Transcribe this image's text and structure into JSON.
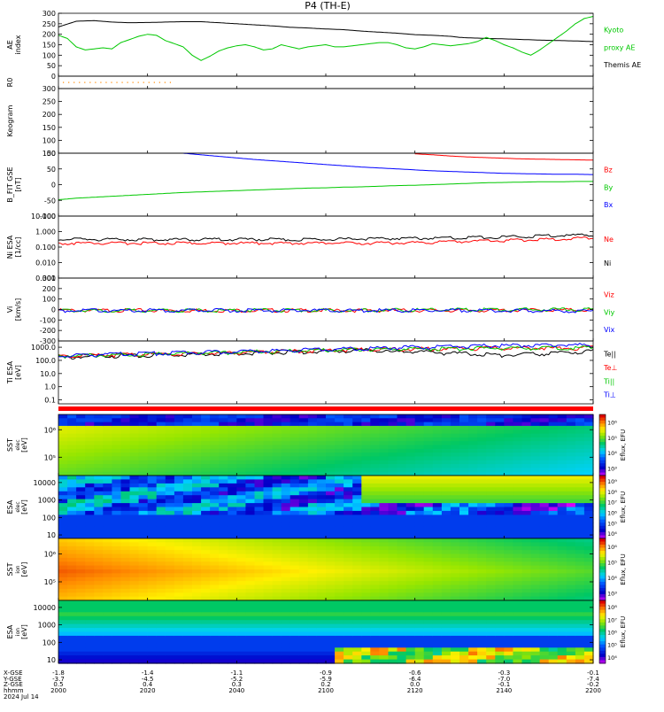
{
  "title": "P4 (TH-E)",
  "colors": {
    "black": "#000000",
    "red": "#ff0000",
    "green": "#00c800",
    "blue": "#0000ff",
    "orange": "#ff8800"
  },
  "chart_data": [
    {
      "type": "line",
      "ylabel": "AE index",
      "ylim": [
        0,
        300
      ],
      "ticks": [
        "0",
        "50",
        "100",
        "150",
        "200",
        "250",
        "300"
      ],
      "legend": [
        "Kyoto",
        "proxy AE",
        "Themis AE"
      ],
      "series": [
        {
          "name": "Themis AE",
          "color": "black",
          "x": [
            0,
            4,
            8,
            12,
            16,
            20,
            24,
            28,
            32,
            36,
            40,
            44,
            48,
            52,
            56,
            60,
            64,
            68,
            72,
            76,
            80,
            84,
            88,
            90,
            92,
            96,
            100,
            104,
            108,
            112,
            116,
            120
          ],
          "values": [
            235,
            262,
            265,
            258,
            255,
            256,
            258,
            260,
            260,
            255,
            250,
            245,
            240,
            233,
            230,
            225,
            222,
            215,
            210,
            205,
            198,
            195,
            190,
            185,
            183,
            180,
            178,
            175,
            172,
            170,
            168,
            165
          ]
        },
        {
          "name": "Kyoto proxy AE",
          "color": "green",
          "x": [
            0,
            2,
            4,
            6,
            8,
            10,
            12,
            14,
            16,
            18,
            20,
            22,
            24,
            26,
            28,
            30,
            32,
            34,
            36,
            38,
            40,
            42,
            44,
            46,
            48,
            50,
            52,
            54,
            56,
            58,
            60,
            62,
            64,
            66,
            68,
            70,
            72,
            74,
            76,
            78,
            80,
            82,
            84,
            86,
            88,
            90,
            92,
            94,
            96,
            98,
            100,
            102,
            104,
            106,
            108,
            110,
            112,
            114,
            116,
            118,
            120
          ],
          "values": [
            195,
            180,
            140,
            125,
            130,
            135,
            130,
            160,
            175,
            190,
            200,
            195,
            170,
            155,
            140,
            100,
            75,
            95,
            120,
            135,
            145,
            150,
            140,
            125,
            130,
            150,
            140,
            130,
            140,
            145,
            150,
            140,
            140,
            145,
            150,
            155,
            160,
            160,
            150,
            135,
            130,
            140,
            155,
            150,
            145,
            150,
            155,
            165,
            185,
            170,
            150,
            135,
            115,
            100,
            125,
            155,
            185,
            215,
            250,
            275,
            285
          ]
        }
      ]
    },
    {
      "type": "line",
      "ylabel": "R0",
      "series": [
        {
          "name": "",
          "color": "orange",
          "x": [
            0,
            20
          ],
          "values": [
            0.5,
            0.5
          ]
        }
      ]
    },
    {
      "type": "line",
      "ylabel": "Keogram",
      "ylim": [
        50,
        300
      ],
      "ticks": [
        "50",
        "100",
        "150",
        "200",
        "250",
        "300"
      ],
      "series": []
    },
    {
      "type": "line",
      "ylabel": "B_FIT GSE [nT]",
      "ylim": [
        -100,
        100
      ],
      "ticks": [
        "-100",
        "-50",
        "0",
        "50",
        "100"
      ],
      "legend": [
        "Bz",
        "By",
        "Bx"
      ],
      "series": [
        {
          "name": "Bz",
          "color": "red",
          "x": [
            80,
            84,
            88,
            92,
            96,
            100,
            104,
            108,
            112,
            116,
            120
          ],
          "values": [
            98,
            95,
            91,
            88,
            86,
            84,
            82,
            81,
            80,
            79,
            78
          ]
        },
        {
          "name": "By",
          "color": "green",
          "x": [
            0,
            4,
            8,
            12,
            16,
            20,
            24,
            28,
            32,
            36,
            40,
            44,
            48,
            52,
            56,
            60,
            64,
            68,
            72,
            76,
            80,
            84,
            88,
            92,
            96,
            100,
            104,
            108,
            112,
            116,
            120
          ],
          "values": [
            -48,
            -43,
            -40,
            -37,
            -34,
            -31,
            -28,
            -25,
            -23,
            -21,
            -19,
            -17,
            -15,
            -13,
            -11,
            -10,
            -8,
            -7,
            -5,
            -3,
            -2,
            0,
            2,
            4,
            6,
            7,
            8,
            9,
            9,
            10,
            10
          ]
        },
        {
          "name": "Bx",
          "color": "blue",
          "x": [
            28,
            32,
            36,
            40,
            44,
            48,
            52,
            56,
            60,
            64,
            68,
            72,
            76,
            80,
            84,
            88,
            92,
            96,
            100,
            104,
            108,
            112,
            116,
            120
          ],
          "values": [
            100,
            95,
            90,
            85,
            80,
            76,
            72,
            68,
            64,
            60,
            56,
            53,
            50,
            47,
            44,
            42,
            40,
            38,
            36,
            35,
            34,
            33,
            33,
            32
          ]
        }
      ]
    },
    {
      "type": "line",
      "ylabel": "Ni ESA [1/cc]",
      "yscale": "log",
      "ylim": [
        0.001,
        10
      ],
      "ticks": [
        "0.001",
        "0.010",
        "0.100",
        "1.000",
        "10.000"
      ],
      "legend": [
        "Ne",
        "Ni"
      ],
      "series": [
        {
          "name": "Ne",
          "color": "red",
          "x": [
            0,
            20,
            40,
            60,
            70,
            80,
            90,
            100,
            110,
            120
          ],
          "values": [
            0.2,
            0.2,
            0.2,
            0.2,
            0.2,
            0.22,
            0.25,
            0.3,
            0.35,
            0.45
          ]
        },
        {
          "name": "Ni",
          "color": "black",
          "x": [
            0,
            20,
            40,
            60,
            70,
            80,
            90,
            100,
            110,
            120
          ],
          "values": [
            0.35,
            0.35,
            0.35,
            0.35,
            0.38,
            0.42,
            0.45,
            0.5,
            0.6,
            0.7
          ]
        }
      ]
    },
    {
      "type": "line",
      "ylabel": "Vi [km/s]",
      "ylim": [
        -300,
        300
      ],
      "ticks": [
        "-300",
        "-200",
        "-100",
        "0",
        "100",
        "200",
        "300"
      ],
      "legend": [
        "Viz",
        "Viy",
        "Vix"
      ],
      "series": [
        {
          "name": "Viz",
          "color": "red",
          "x": [
            0,
            30,
            60,
            90,
            120
          ],
          "values": [
            0,
            0,
            0,
            0,
            5
          ]
        },
        {
          "name": "Viy",
          "color": "green",
          "x": [
            0,
            30,
            60,
            90,
            120
          ],
          "values": [
            0,
            0,
            0,
            5,
            10
          ]
        },
        {
          "name": "Vix",
          "color": "blue",
          "x": [
            0,
            30,
            60,
            90,
            120
          ],
          "values": [
            0,
            0,
            0,
            0,
            -5
          ]
        }
      ]
    },
    {
      "type": "line",
      "ylabel": "Ti ESA [eV]",
      "yscale": "log",
      "ylim": [
        0.05,
        3000
      ],
      "ticks": [
        "0.1",
        "1.0",
        "10.0",
        "100.0",
        "1000.0"
      ],
      "legend": [
        "Te||",
        "Te⊥",
        "Ti||",
        "Ti⊥"
      ],
      "series": [
        {
          "name": "Te||",
          "color": "black",
          "x": [
            0,
            20,
            40,
            60,
            70,
            75,
            80,
            85,
            90,
            95,
            100,
            105,
            110,
            115,
            120
          ],
          "values": [
            200,
            300,
            400,
            600,
            700,
            500,
            600,
            450,
            400,
            350,
            300,
            350,
            400,
            500,
            600
          ]
        },
        {
          "name": "Te⊥",
          "color": "red",
          "x": [
            0,
            20,
            40,
            60,
            80,
            100,
            120
          ],
          "values": [
            250,
            350,
            450,
            700,
            900,
            1000,
            1100
          ]
        },
        {
          "name": "Ti||",
          "color": "green",
          "x": [
            0,
            20,
            40,
            60,
            80,
            100,
            120
          ],
          "values": [
            250,
            350,
            500,
            700,
            900,
            1000,
            1100
          ]
        },
        {
          "name": "Ti⊥",
          "color": "blue",
          "x": [
            0,
            20,
            40,
            60,
            80,
            100,
            120
          ],
          "values": [
            280,
            400,
            550,
            800,
            1200,
            1600,
            1800
          ]
        }
      ]
    },
    {
      "type": "heatmap",
      "ylabel": "SST [eV]",
      "ylabel_sup": "elec",
      "ticks": [
        "10⁵",
        "10⁶"
      ],
      "colorbar_label": "Eflux, EFU",
      "colorbar_ticks": [
        "10³",
        "10⁴",
        "10⁵",
        "10⁶"
      ]
    },
    {
      "type": "heatmap",
      "ylabel": "ESA [eV]",
      "ylabel_sup": "elec",
      "ticks": [
        "10",
        "100",
        "1000",
        "10000"
      ],
      "colorbar_label": "Eflux, EFU",
      "colorbar_ticks": [
        "10⁴",
        "10⁵",
        "10⁶",
        "10⁷",
        "10⁸",
        "10⁹"
      ]
    },
    {
      "type": "heatmap",
      "ylabel": "SST [eV]",
      "ylabel_sup": "ion",
      "ticks": [
        "10⁵",
        "10⁶"
      ],
      "colorbar_label": "Eflux, EFU",
      "colorbar_ticks": [
        "10³",
        "10⁴",
        "10⁵",
        "10⁶"
      ]
    },
    {
      "type": "heatmap",
      "ylabel": "ESA [eV]",
      "ylabel_sup": "ion",
      "ticks": [
        "10",
        "100",
        "1000",
        "10000"
      ],
      "colorbar_label": "Eflux, EFU",
      "colorbar_ticks": [
        "10⁴",
        "10⁵",
        "10⁶",
        "10⁷",
        "10⁸"
      ]
    }
  ],
  "xaxis": {
    "row_labels": [
      "X-GSE",
      "Y-GSE",
      "Z-GSE",
      "hhmm",
      "2024 Jul 14"
    ],
    "columns": [
      [
        "-1.8",
        "-3.7",
        "0.5",
        "2000"
      ],
      [
        "-1.4",
        "-4.5",
        "0.4",
        "2020"
      ],
      [
        "-1.1",
        "-5.2",
        "0.3",
        "2040"
      ],
      [
        "-0.9",
        "-5.9",
        "0.2",
        "2100"
      ],
      [
        "-0.6",
        "-6.4",
        "0.0",
        "2120"
      ],
      [
        "-0.3",
        "-7.0",
        "-0.1",
        "2140"
      ],
      [
        "-0.1",
        "-7.4",
        "-0.2",
        "2200"
      ]
    ]
  }
}
